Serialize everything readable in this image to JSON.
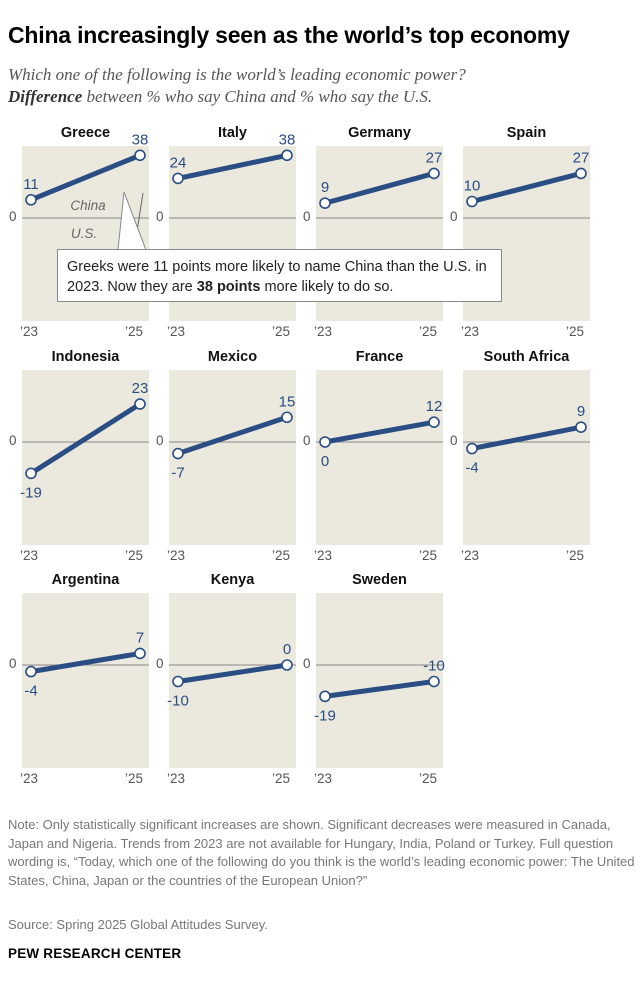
{
  "title": "China increasingly seen as the world’s top economy",
  "subtitle_line1": "Which one of the following is the world’s leading economic power?",
  "subtitle_bold": "Difference",
  "subtitle_line2_rest": " between % who say China and % who say the U.S.",
  "callout": {
    "text_before": "Greeks were 11 points more likely to name China than the U.S. in 2023. Now they are ",
    "text_bold": "38 points",
    "text_after": " more likely to do so."
  },
  "annotations": {
    "china_label": "China",
    "us_label": "U.S."
  },
  "note": "Note: Only statistically significant increases are shown. Significant decreases were measured in Canada, Japan and Nigeria. Trends from 2023 are not available for Hungary, India, Poland or Turkey. Full question wording is, “Today, which one of the following do you think is the world’s leading economic power: The United States, China, Japan or the countries of the European Union?”",
  "source": "Source: Spring 2025 Global Attitudes Survey.",
  "brand": "PEW RESEARCH CENTER",
  "colors": {
    "line": "#2a4e84",
    "panel": "#ebe8de",
    "zero_line": "#888888",
    "label": "#2a4e84"
  },
  "chart_data": {
    "type": "line",
    "x": [
      "’23",
      "’25"
    ],
    "zero_label": "0",
    "panels": [
      {
        "country": "Greece",
        "values": [
          11,
          38
        ]
      },
      {
        "country": "Italy",
        "values": [
          24,
          38
        ]
      },
      {
        "country": "Germany",
        "values": [
          9,
          27
        ]
      },
      {
        "country": "Spain",
        "values": [
          10,
          27
        ]
      },
      {
        "country": "Indonesia",
        "values": [
          -19,
          23
        ]
      },
      {
        "country": "Mexico",
        "values": [
          -7,
          15
        ]
      },
      {
        "country": "France",
        "values": [
          0,
          12
        ]
      },
      {
        "country": "South Africa",
        "values": [
          -4,
          9
        ]
      },
      {
        "country": "Argentina",
        "values": [
          -4,
          7
        ]
      },
      {
        "country": "Kenya",
        "values": [
          -10,
          0
        ]
      },
      {
        "country": "Sweden",
        "values": [
          -19,
          -10
        ]
      }
    ]
  }
}
